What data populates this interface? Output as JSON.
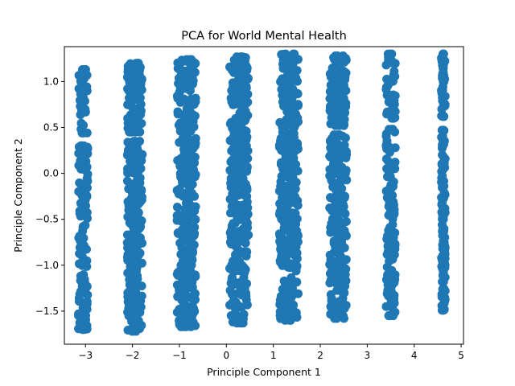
{
  "chart_data": {
    "type": "scatter",
    "title": "PCA for World Mental Health",
    "xlabel": "Principle Component 1",
    "ylabel": "Principle Component 2",
    "xlim": [
      -3.45,
      5.05
    ],
    "ylim": [
      -1.86,
      1.38
    ],
    "x_ticks": [
      -3,
      -2,
      -1,
      0,
      1,
      2,
      3,
      4,
      5
    ],
    "y_ticks": [
      -1.5,
      -1.0,
      -0.5,
      0.0,
      0.5,
      1.0
    ],
    "x_tick_labels": [
      "−3",
      "−2",
      "−1",
      "0",
      "1",
      "2",
      "3",
      "4",
      "5"
    ],
    "y_tick_labels": [
      "−1.5",
      "−1.0",
      "−0.5",
      "0.0",
      "0.5",
      "1.0"
    ],
    "marker_color": "#1f77b4",
    "grid": false,
    "legend": false,
    "clusters": [
      {
        "x_center": -3.05,
        "x_spread": 0.1,
        "segments": [
          [
            0.44,
            1.13
          ],
          [
            -1.7,
            0.3
          ]
        ]
      },
      {
        "x_center": -1.95,
        "x_spread": 0.16,
        "segments": [
          [
            0.45,
            1.2
          ],
          [
            -1.72,
            0.35
          ]
        ]
      },
      {
        "x_center": -0.85,
        "x_spread": 0.2,
        "segments": [
          [
            0.46,
            1.24
          ],
          [
            -1.67,
            0.38
          ]
        ]
      },
      {
        "x_center": 0.27,
        "x_spread": 0.2,
        "segments": [
          [
            0.45,
            1.27
          ],
          [
            -1.63,
            0.42
          ]
        ]
      },
      {
        "x_center": 1.33,
        "x_spread": 0.2,
        "segments": [
          [
            0.5,
            1.3
          ],
          [
            -1.6,
            0.45
          ]
        ]
      },
      {
        "x_center": 2.38,
        "x_spread": 0.18,
        "segments": [
          [
            0.52,
            1.28
          ],
          [
            -1.58,
            0.42
          ]
        ]
      },
      {
        "x_center": 3.5,
        "x_spread": 0.1,
        "segments": [
          [
            0.6,
            1.3
          ],
          [
            -1.55,
            0.48
          ]
        ]
      },
      {
        "x_center": 4.62,
        "x_spread": 0.04,
        "segments": [
          [
            0.62,
            1.3
          ],
          [
            -1.49,
            0.47
          ]
        ]
      }
    ]
  }
}
